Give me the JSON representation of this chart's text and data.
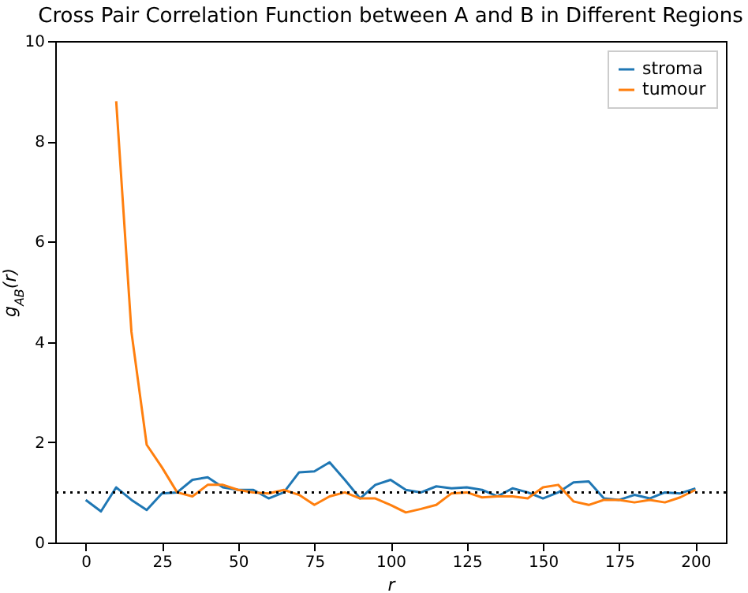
{
  "chart_data": {
    "type": "line",
    "title": "Cross Pair Correlation Function between A and B in Different Regions",
    "xlabel": "r",
    "ylabel": "g$_{AB}$(r)",
    "x": [
      0,
      5,
      10,
      15,
      20,
      25,
      30,
      35,
      40,
      45,
      50,
      55,
      60,
      65,
      70,
      75,
      80,
      85,
      90,
      95,
      100,
      105,
      110,
      115,
      120,
      125,
      130,
      135,
      140,
      145,
      150,
      155,
      160,
      165,
      170,
      175,
      180,
      185,
      190,
      195,
      200
    ],
    "series": [
      {
        "name": "stroma",
        "color": "#1f77b4",
        "values": [
          0.85,
          0.62,
          1.1,
          0.85,
          0.65,
          0.98,
          1.0,
          1.25,
          1.3,
          1.1,
          1.05,
          1.05,
          0.88,
          1.0,
          1.4,
          1.42,
          1.6,
          1.25,
          0.88,
          1.15,
          1.25,
          1.05,
          1.0,
          1.12,
          1.08,
          1.1,
          1.05,
          0.92,
          1.08,
          1.0,
          0.88,
          1.0,
          1.2,
          1.22,
          0.88,
          0.85,
          0.95,
          0.88,
          1.0,
          0.98,
          1.08
        ]
      },
      {
        "name": "tumour",
        "color": "#ff7f0e",
        "x": [
          10,
          15,
          20,
          25,
          30,
          35,
          40,
          45,
          50,
          55,
          60,
          65,
          70,
          75,
          80,
          85,
          90,
          95,
          100,
          105,
          110,
          115,
          120,
          125,
          130,
          135,
          140,
          145,
          150,
          155,
          160,
          165,
          170,
          175,
          180,
          185,
          190,
          195,
          200
        ],
        "values": [
          8.8,
          4.2,
          1.95,
          1.5,
          1.0,
          0.92,
          1.15,
          1.15,
          1.05,
          1.0,
          0.98,
          1.05,
          0.95,
          0.75,
          0.92,
          1.0,
          0.88,
          0.88,
          0.75,
          0.6,
          0.67,
          0.75,
          0.98,
          1.0,
          0.9,
          0.92,
          0.92,
          0.88,
          1.1,
          1.15,
          0.82,
          0.75,
          0.85,
          0.85,
          0.8,
          0.85,
          0.8,
          0.9,
          1.05
        ]
      }
    ],
    "xlim": [
      -10,
      210
    ],
    "xticks": [
      0,
      25,
      50,
      75,
      100,
      125,
      150,
      175,
      200
    ],
    "ylim": [
      0,
      10
    ],
    "yticks": [
      0,
      2,
      4,
      6,
      8,
      10
    ],
    "ref_lines": [
      {
        "axis": "y",
        "value": 1,
        "color": "#000000",
        "line_style": "dotted"
      }
    ],
    "legend": "top right",
    "line_style": "solid"
  }
}
